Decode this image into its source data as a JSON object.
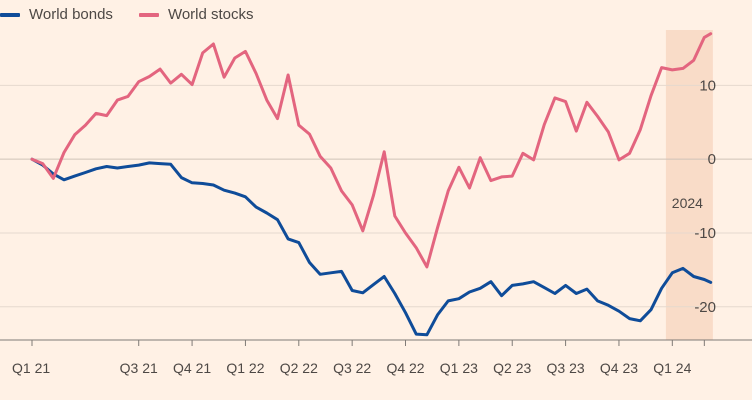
{
  "legend": {
    "bonds_label": "World bonds",
    "stocks_label": "World stocks"
  },
  "colors": {
    "background": "#fff1e5",
    "bonds": "#0f4c99",
    "stocks": "#e3657f",
    "highlight": "#f9dcc8",
    "grid": "#e6d9ce",
    "zero_line": "#cfc2b7"
  },
  "chart_data": {
    "type": "line",
    "title": "",
    "xlabel": "",
    "ylabel": "",
    "x_domain": [
      2021.0,
      2024.2
    ],
    "ylim": [
      -24.5,
      17.5
    ],
    "yticks": [
      10,
      0,
      -10,
      -20
    ],
    "ytick_labels": [
      "10",
      "0",
      "-10",
      "-20"
    ],
    "xticks": [
      2021.0,
      2021.5,
      2021.75,
      2022.0,
      2022.25,
      2022.5,
      2022.75,
      2023.0,
      2023.25,
      2023.5,
      2023.75,
      2024.0,
      2024.15
    ],
    "xtick_labels": [
      "Q1 21",
      "Q3 21",
      "Q4 21",
      "Q1 22",
      "Q2 22",
      "Q3 22",
      "Q4 22",
      "Q1 23",
      "Q2 23",
      "Q3 23",
      "Q4 23",
      "Q1 24",
      ""
    ],
    "highlight": {
      "x_start": 2023.97,
      "x_end": 2024.19,
      "label": "2024"
    },
    "series": [
      {
        "name": "World bonds",
        "x": [
          2021.0,
          2021.05,
          2021.1,
          2021.15,
          2021.2,
          2021.25,
          2021.3,
          2021.35,
          2021.4,
          2021.45,
          2021.5,
          2021.55,
          2021.6,
          2021.65,
          2021.7,
          2021.75,
          2021.8,
          2021.85,
          2021.9,
          2021.95,
          2022.0,
          2022.05,
          2022.1,
          2022.15,
          2022.2,
          2022.25,
          2022.3,
          2022.35,
          2022.4,
          2022.45,
          2022.5,
          2022.55,
          2022.6,
          2022.65,
          2022.7,
          2022.75,
          2022.8,
          2022.85,
          2022.9,
          2022.95,
          2023.0,
          2023.05,
          2023.1,
          2023.15,
          2023.2,
          2023.25,
          2023.3,
          2023.35,
          2023.4,
          2023.45,
          2023.5,
          2023.55,
          2023.6,
          2023.65,
          2023.7,
          2023.75,
          2023.8,
          2023.85,
          2023.9,
          2023.95,
          2024.0,
          2024.05,
          2024.1,
          2024.15,
          2024.18
        ],
        "values": [
          0.0,
          -0.8,
          -2.0,
          -2.8,
          -2.3,
          -1.8,
          -1.3,
          -1.0,
          -1.2,
          -1.0,
          -0.8,
          -0.5,
          -0.6,
          -0.7,
          -2.5,
          -3.2,
          -3.3,
          -3.5,
          -4.2,
          -4.6,
          -5.1,
          -6.5,
          -7.3,
          -8.2,
          -10.8,
          -11.3,
          -14.0,
          -15.6,
          -15.4,
          -15.2,
          -17.8,
          -18.1,
          -17.0,
          -15.9,
          -18.2,
          -20.8,
          -23.7,
          -23.8,
          -21.1,
          -19.2,
          -18.9,
          -18.0,
          -17.5,
          -16.6,
          -18.5,
          -17.1,
          -16.9,
          -16.6,
          -17.4,
          -18.2,
          -17.1,
          -18.2,
          -17.6,
          -19.2,
          -19.8,
          -20.6,
          -21.6,
          -21.9,
          -20.4,
          -17.5,
          -15.4,
          -14.8,
          -15.9,
          -16.3,
          -16.7
        ]
      },
      {
        "name": "World stocks",
        "x": [
          2021.0,
          2021.05,
          2021.1,
          2021.15,
          2021.2,
          2021.25,
          2021.3,
          2021.35,
          2021.4,
          2021.45,
          2021.5,
          2021.55,
          2021.6,
          2021.65,
          2021.7,
          2021.75,
          2021.8,
          2021.85,
          2021.9,
          2021.95,
          2022.0,
          2022.05,
          2022.1,
          2022.15,
          2022.2,
          2022.25,
          2022.3,
          2022.35,
          2022.4,
          2022.45,
          2022.5,
          2022.55,
          2022.6,
          2022.65,
          2022.7,
          2022.75,
          2022.8,
          2022.85,
          2022.9,
          2022.95,
          2023.0,
          2023.05,
          2023.1,
          2023.15,
          2023.2,
          2023.25,
          2023.3,
          2023.35,
          2023.4,
          2023.45,
          2023.5,
          2023.55,
          2023.6,
          2023.65,
          2023.7,
          2023.75,
          2023.8,
          2023.85,
          2023.9,
          2023.95,
          2024.0,
          2024.05,
          2024.1,
          2024.15,
          2024.18
        ],
        "values": [
          0.0,
          -0.6,
          -2.6,
          0.9,
          3.3,
          4.6,
          6.2,
          5.9,
          8.0,
          8.5,
          10.5,
          11.2,
          12.2,
          10.3,
          11.5,
          10.1,
          14.4,
          15.6,
          11.1,
          13.7,
          14.6,
          11.6,
          8.0,
          5.5,
          11.4,
          4.6,
          3.4,
          0.4,
          -1.2,
          -4.3,
          -6.2,
          -9.7,
          -4.9,
          1.0,
          -7.7,
          -10.0,
          -12.0,
          -14.6,
          -9.3,
          -4.3,
          -1.1,
          -3.9,
          0.2,
          -2.9,
          -2.4,
          -2.3,
          0.8,
          -0.1,
          4.7,
          8.3,
          7.8,
          3.8,
          7.7,
          5.8,
          3.7,
          -0.1,
          0.8,
          4.0,
          8.6,
          12.4,
          12.1,
          12.3,
          13.4,
          16.5,
          17.0
        ]
      }
    ]
  }
}
